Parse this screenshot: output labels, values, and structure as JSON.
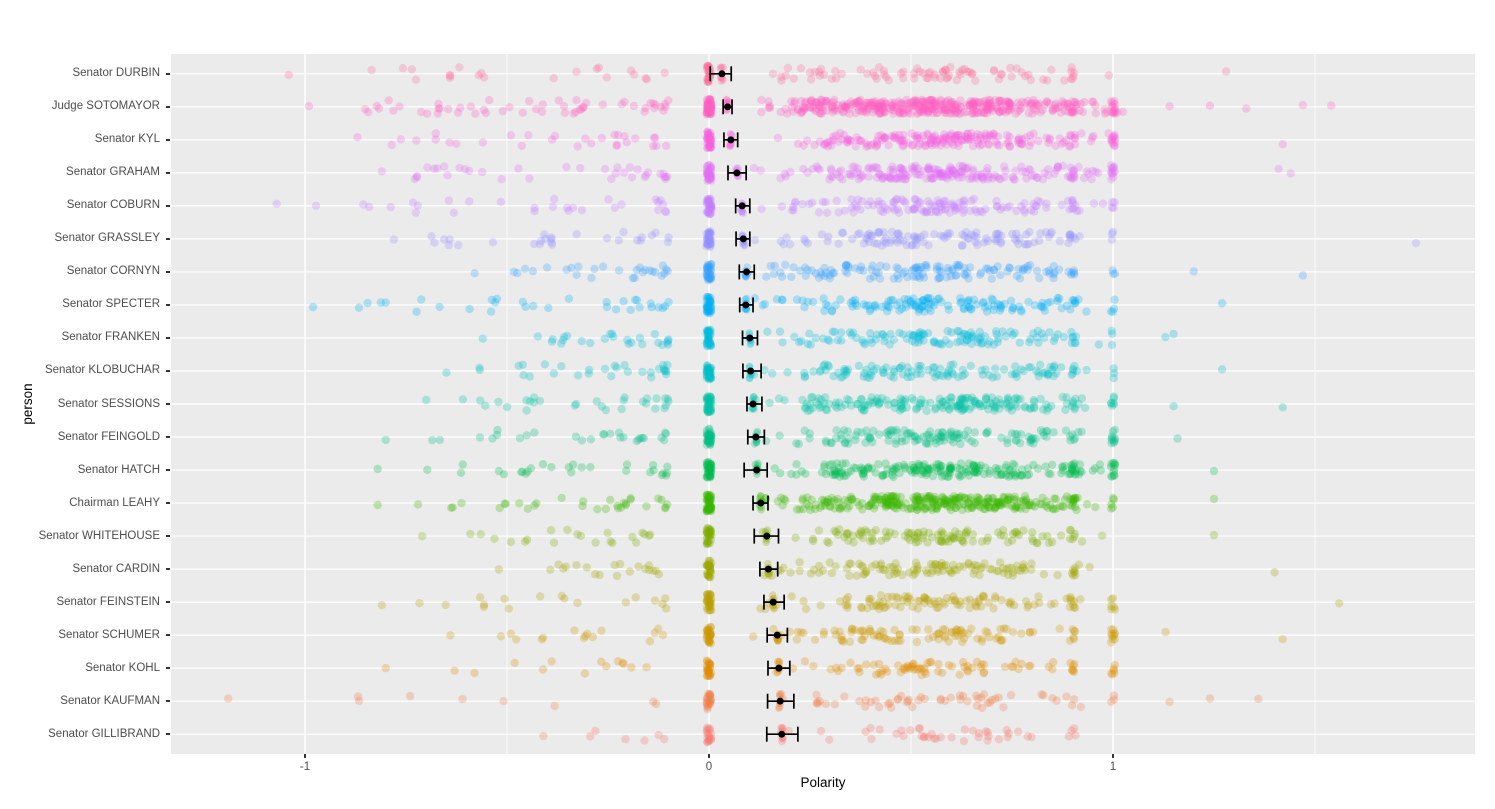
{
  "figure": {
    "background": "#FFFFFF",
    "panel_background": "#EBEBEB",
    "grid_color": "#FFFFFF",
    "axis_text_color": "#4D4D4D",
    "axis_title_color": "#000000",
    "pointrange_color": "#000000"
  },
  "axes": {
    "x": {
      "title": "Polarity",
      "ticks": [
        {
          "value": -1,
          "label": "-1"
        },
        {
          "value": 0,
          "label": "0"
        },
        {
          "value": 1,
          "label": "1"
        }
      ],
      "minor_ticks": [
        -0.5,
        0.5,
        1.5
      ],
      "range": [
        -1.33,
        1.9
      ]
    },
    "y": {
      "title": "person"
    }
  },
  "chart_data": {
    "type": "scatter",
    "subtype": "jittered points with mean and confidence interval (pointrange) per person",
    "xlabel": "Polarity",
    "ylabel": "person",
    "xlim": [
      -1.33,
      1.9
    ],
    "grid": true,
    "legend": false,
    "seed": 42,
    "series": [
      {
        "person": "Senator DURBIN",
        "color": "#FF6B9A",
        "mean": 0.032,
        "ci_low": 0.003,
        "ci_high": 0.055,
        "neg_min": -1.04,
        "band_min": 0.1,
        "band_max": 1.02,
        "n_band": 80,
        "n_neg": 22,
        "n_zero": 30,
        "cluster_at_1": 0,
        "cluster_at_09": 4,
        "right_outliers": [
          1.28
        ]
      },
      {
        "person": "Judge SOTOMAYOR",
        "color": "#FF61C3",
        "mean": 0.046,
        "ci_low": 0.035,
        "ci_high": 0.057,
        "neg_min": -0.99,
        "band_min": 0.1,
        "band_max": 1.05,
        "n_band": 420,
        "n_neg": 55,
        "n_zero": 70,
        "cluster_at_1": 14,
        "cluster_at_09": 10,
        "right_outliers": [
          1.14,
          1.24,
          1.33,
          1.47,
          1.54
        ]
      },
      {
        "person": "Senator KYL",
        "color": "#F862DD",
        "mean": 0.054,
        "ci_low": 0.037,
        "ci_high": 0.071,
        "neg_min": -0.87,
        "band_min": 0.1,
        "band_max": 1.02,
        "n_band": 190,
        "n_neg": 30,
        "n_zero": 45,
        "cluster_at_1": 12,
        "cluster_at_09": 6,
        "right_outliers": [
          1.42
        ]
      },
      {
        "person": "Senator GRAHAM",
        "color": "#E46EF5",
        "mean": 0.069,
        "ci_low": 0.047,
        "ci_high": 0.092,
        "neg_min": -0.81,
        "band_min": 0.1,
        "band_max": 1.02,
        "n_band": 200,
        "n_neg": 35,
        "n_zero": 45,
        "cluster_at_1": 12,
        "cluster_at_09": 6,
        "right_outliers": [
          1.41,
          1.44
        ]
      },
      {
        "person": "Senator COBURN",
        "color": "#C77CFF",
        "mean": 0.082,
        "ci_low": 0.066,
        "ci_high": 0.101,
        "neg_min": -1.07,
        "band_min": 0.1,
        "band_max": 1.0,
        "n_band": 130,
        "n_neg": 30,
        "n_zero": 40,
        "cluster_at_1": 4,
        "cluster_at_09": 5,
        "right_outliers": []
      },
      {
        "person": "Senator GRASSLEY",
        "color": "#9590FF",
        "mean": 0.085,
        "ci_low": 0.067,
        "ci_high": 0.101,
        "neg_min": -0.78,
        "band_min": 0.1,
        "band_max": 1.0,
        "n_band": 115,
        "n_neg": 28,
        "n_zero": 40,
        "cluster_at_1": 3,
        "cluster_at_09": 4,
        "right_outliers": [
          1.75
        ]
      },
      {
        "person": "Senator CORNYN",
        "color": "#35A2FF",
        "mean": 0.093,
        "ci_low": 0.075,
        "ci_high": 0.112,
        "neg_min": -0.58,
        "band_min": 0.1,
        "band_max": 1.0,
        "n_band": 130,
        "n_neg": 28,
        "n_zero": 40,
        "cluster_at_1": 3,
        "cluster_at_09": 5,
        "right_outliers": [
          1.2,
          1.47
        ]
      },
      {
        "person": "Senator SPECTER",
        "color": "#00B0F6",
        "mean": 0.091,
        "ci_low": 0.076,
        "ci_high": 0.109,
        "neg_min": -0.98,
        "band_min": 0.1,
        "band_max": 1.0,
        "n_band": 135,
        "n_neg": 32,
        "n_zero": 40,
        "cluster_at_1": 4,
        "cluster_at_09": 5,
        "right_outliers": [
          1.27
        ]
      },
      {
        "person": "Senator FRANKEN",
        "color": "#00BCDC",
        "mean": 0.101,
        "ci_low": 0.083,
        "ci_high": 0.12,
        "neg_min": -0.56,
        "band_min": 0.1,
        "band_max": 1.0,
        "n_band": 120,
        "n_neg": 26,
        "n_zero": 40,
        "cluster_at_1": 3,
        "cluster_at_09": 6,
        "right_outliers": [
          1.13,
          1.15
        ]
      },
      {
        "person": "Senator KLOBUCHAR",
        "color": "#00BFC4",
        "mean": 0.103,
        "ci_low": 0.084,
        "ci_high": 0.129,
        "neg_min": -0.65,
        "band_min": 0.1,
        "band_max": 1.0,
        "n_band": 115,
        "n_neg": 30,
        "n_zero": 40,
        "cluster_at_1": 3,
        "cluster_at_09": 5,
        "right_outliers": [
          1.27
        ]
      },
      {
        "person": "Senator SESSIONS",
        "color": "#00C1A7",
        "mean": 0.109,
        "ci_low": 0.094,
        "ci_high": 0.131,
        "neg_min": -0.7,
        "band_min": 0.1,
        "band_max": 1.02,
        "n_band": 185,
        "n_neg": 30,
        "n_zero": 45,
        "cluster_at_1": 6,
        "cluster_at_09": 5,
        "right_outliers": [
          1.15,
          1.42
        ]
      },
      {
        "person": "Senator FEINGOLD",
        "color": "#00BF85",
        "mean": 0.116,
        "ci_low": 0.096,
        "ci_high": 0.137,
        "neg_min": -0.8,
        "band_min": 0.1,
        "band_max": 1.0,
        "n_band": 130,
        "n_neg": 28,
        "n_zero": 40,
        "cluster_at_1": 10,
        "cluster_at_09": 4,
        "right_outliers": [
          1.16
        ]
      },
      {
        "person": "Senator HATCH",
        "color": "#00BB4E",
        "mean": 0.118,
        "ci_low": 0.087,
        "ci_high": 0.144,
        "neg_min": -0.82,
        "band_min": 0.1,
        "band_max": 1.02,
        "n_band": 200,
        "n_neg": 28,
        "n_zero": 45,
        "cluster_at_1": 12,
        "cluster_at_09": 8,
        "right_outliers": [
          1.25
        ]
      },
      {
        "person": "Chairman LEAHY",
        "color": "#39B600",
        "mean": 0.128,
        "ci_low": 0.109,
        "ci_high": 0.146,
        "neg_min": -0.82,
        "band_min": 0.1,
        "band_max": 1.02,
        "n_band": 300,
        "n_neg": 32,
        "n_zero": 60,
        "cluster_at_1": 5,
        "cluster_at_09": 8,
        "right_outliers": [
          1.25
        ]
      },
      {
        "person": "Senator WHITEHOUSE",
        "color": "#7CAE00",
        "mean": 0.143,
        "ci_low": 0.112,
        "ci_high": 0.172,
        "neg_min": -0.71,
        "band_min": 0.1,
        "band_max": 1.0,
        "n_band": 110,
        "n_neg": 22,
        "n_zero": 35,
        "cluster_at_1": 0,
        "cluster_at_09": 6,
        "right_outliers": [
          1.25
        ]
      },
      {
        "person": "Senator CARDIN",
        "color": "#9DA700",
        "mean": 0.147,
        "ci_low": 0.126,
        "ci_high": 0.17,
        "neg_min": -0.52,
        "band_min": 0.1,
        "band_max": 1.0,
        "n_band": 115,
        "n_neg": 20,
        "n_zero": 35,
        "cluster_at_1": 0,
        "cluster_at_09": 6,
        "right_outliers": [
          1.4
        ]
      },
      {
        "person": "Senator FEINSTEIN",
        "color": "#B79F00",
        "mean": 0.159,
        "ci_low": 0.136,
        "ci_high": 0.186,
        "neg_min": -0.81,
        "band_min": 0.1,
        "band_max": 1.0,
        "n_band": 100,
        "n_neg": 18,
        "n_zero": 35,
        "cluster_at_1": 6,
        "cluster_at_09": 8,
        "right_outliers": [
          1.56
        ]
      },
      {
        "person": "Senator SCHUMER",
        "color": "#CD9600",
        "mean": 0.169,
        "ci_low": 0.144,
        "ci_high": 0.194,
        "neg_min": -0.64,
        "band_min": 0.1,
        "band_max": 1.0,
        "n_band": 100,
        "n_neg": 16,
        "n_zero": 35,
        "cluster_at_1": 10,
        "cluster_at_09": 4,
        "right_outliers": [
          1.13,
          1.42
        ]
      },
      {
        "person": "Senator KOHL",
        "color": "#E08B00",
        "mean": 0.173,
        "ci_low": 0.146,
        "ci_high": 0.2,
        "neg_min": -0.8,
        "band_min": 0.1,
        "band_max": 0.98,
        "n_band": 75,
        "n_neg": 14,
        "n_zero": 30,
        "cluster_at_1": 6,
        "cluster_at_09": 6,
        "right_outliers": []
      },
      {
        "person": "Senator KAUFMAN",
        "color": "#EF7F49",
        "mean": 0.176,
        "ci_low": 0.145,
        "ci_high": 0.21,
        "neg_min": -1.19,
        "band_min": 0.1,
        "band_max": 0.95,
        "n_band": 55,
        "n_neg": 9,
        "n_zero": 25,
        "cluster_at_1": 3,
        "cluster_at_09": 2,
        "right_outliers": [
          1.14,
          1.24,
          1.36
        ]
      },
      {
        "person": "Senator GILLIBRAND",
        "color": "#F8766D",
        "mean": 0.18,
        "ci_low": 0.143,
        "ci_high": 0.22,
        "neg_min": -0.41,
        "band_min": 0.1,
        "band_max": 0.93,
        "n_band": 40,
        "n_neg": 7,
        "n_zero": 20,
        "cluster_at_1": 0,
        "cluster_at_09": 2,
        "right_outliers": []
      }
    ]
  }
}
